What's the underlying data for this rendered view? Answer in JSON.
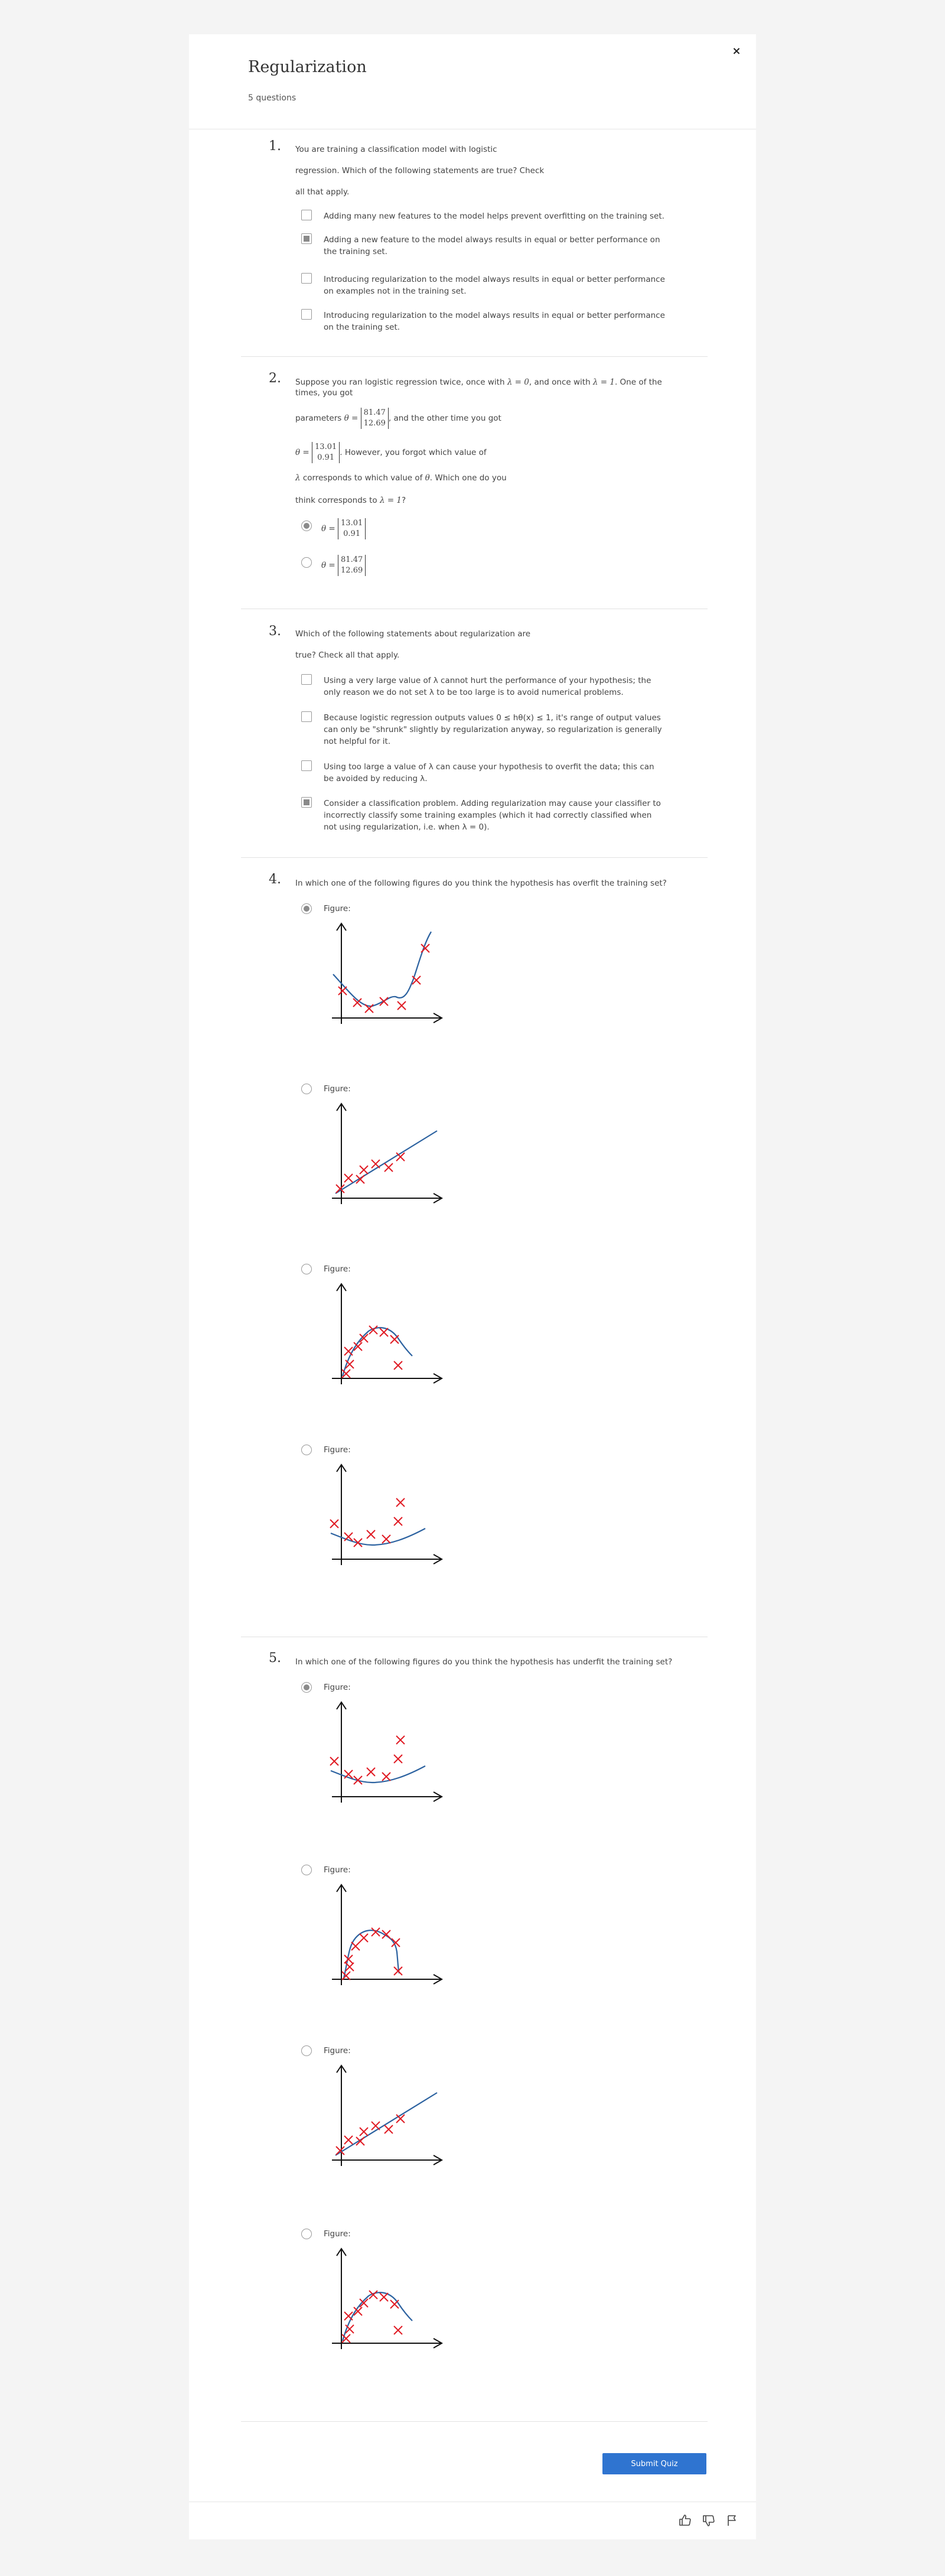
{
  "header": {
    "title": "Regularization",
    "subtitle": "5 questions",
    "close_glyph": "×"
  },
  "q1": {
    "number": "1.",
    "prompt": [
      "You are training a classification model with logistic",
      "regression. Which of the following statements are true? Check",
      "all that apply."
    ],
    "options": [
      {
        "text": "Adding many new features to the model helps prevent overfitting on the training set.",
        "checked": false
      },
      {
        "text": "Adding a new feature to the model always results in equal or better performance on the training set.",
        "checked": true
      },
      {
        "text": "Introducing regularization to the model always results in equal or better performance on examples not in the training set.",
        "checked": false
      },
      {
        "text": "Introducing regularization to the model always results in equal or better performance on the training set.",
        "checked": false
      }
    ]
  },
  "q2": {
    "number": "2.",
    "line1a": "Suppose you ran logistic regression twice, once with ",
    "line1b": "λ = 0",
    "line1c": ", and once with ",
    "line1d": "λ = 1",
    "line1e": ". One of the",
    "line2": "times, you got",
    "line3a": "parameters ",
    "theta_eq": "θ =",
    "theta1": [
      "81.47",
      "12.69"
    ],
    "line3b": ", and the other time you got",
    "theta2": [
      "13.01",
      "0.91"
    ],
    "line4b": ". However, you forgot which value of",
    "line5a": "λ",
    "line5b": " corresponds to which value of ",
    "line5c": "θ",
    "line5d": ". Which one do you",
    "line6a": "think corresponds to ",
    "line6b": "λ = 1",
    "line6c": "?",
    "options": [
      {
        "matrix": [
          "13.01",
          "0.91"
        ],
        "checked": true
      },
      {
        "matrix": [
          "81.47",
          "12.69"
        ],
        "checked": false
      }
    ]
  },
  "q3": {
    "number": "3.",
    "prompt": [
      "Which of the following statements about regularization are",
      "true? Check all that apply."
    ],
    "options": [
      {
        "text": "Using a very large value of λ cannot hurt the performance of your hypothesis; the only reason we do not set λ to be too large is to avoid numerical problems.",
        "checked": false
      },
      {
        "text": "Because logistic regression outputs values 0 ≤ hθ(x) ≤ 1, it's range of output values can only be \"shrunk\" slightly by regularization anyway, so regularization is generally not helpful for it.",
        "checked": false
      },
      {
        "text": "Using too large a value of λ can cause your hypothesis to overfit the data; this can be avoided by reducing λ.",
        "checked": false
      },
      {
        "text": "Consider a classification problem. Adding regularization may cause your classifier to incorrectly classify some training examples (which it had correctly classified when not using regularization, i.e. when λ = 0).",
        "checked": true
      }
    ]
  },
  "q4": {
    "number": "4.",
    "prompt": "In which one of the following figures do you think the hypothesis has overfit the training set?",
    "figure_label": "Figure:",
    "selected": [
      true,
      false,
      false,
      false
    ]
  },
  "q5": {
    "number": "5.",
    "prompt": "In which one of the following figures do you think the hypothesis has underfit the training set?",
    "figure_label": "Figure:",
    "selected": [
      true,
      false,
      false,
      false
    ]
  },
  "submit_label": "Submit Quiz",
  "colors": {
    "accent": "#2f74d0",
    "cross": "#e01b24",
    "curve": "#2c62a0"
  },
  "footer_icons": [
    "thumbs-up-icon",
    "thumbs-down-icon",
    "flag-icon"
  ]
}
